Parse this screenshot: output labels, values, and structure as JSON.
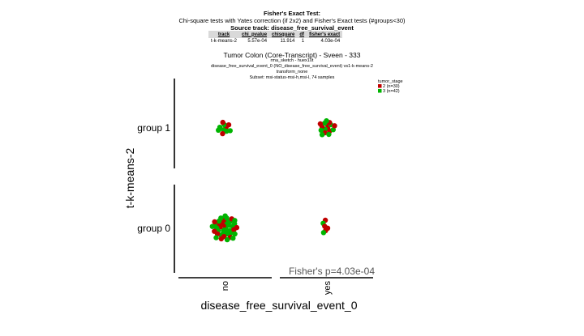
{
  "header": {
    "title": "Fisher's Exact Test:",
    "description": "Chi-square tests with Yates correction (if 2x2) and Fisher's Exact tests (#groups<30)",
    "source": "Source track: disease_free_survival_event",
    "table": {
      "columns": [
        "track",
        "chi_pvalue",
        "chisquare",
        "df",
        "fisher's exact"
      ],
      "rows": [
        [
          "t-k-means-2",
          "5.57e-04",
          "11.914",
          "1",
          "4.03e-04"
        ]
      ]
    }
  },
  "plot": {
    "title": "Tumor Colon (Core-Transcript) - Sveen - 333",
    "subtitle_lines": [
      "rma_sketch - huex10t",
      "disease_free_survival_event_0 (NO_disease_free_survival_event) vs1-k-means-2",
      "transform_none",
      "Subset: msi-status-msi-h,msi-l, 74 samples"
    ]
  },
  "chart_data": {
    "type": "scatter",
    "xlabel": "disease_free_survival_event_0",
    "ylabel": "t-k-means-2",
    "x_categories": [
      "no",
      "yes"
    ],
    "y_categories": [
      "group 0",
      "group 1"
    ],
    "annotation": "Fisher's p=4.03e-04",
    "legend": {
      "title": "tumor_stage",
      "placement": "top-right",
      "entries": [
        {
          "label": "2 (n=30)",
          "color": "#c00000"
        },
        {
          "label": "3 (n=42)",
          "color": "#00b400"
        }
      ]
    },
    "cells": [
      {
        "x": "no",
        "y": "group 1",
        "counts": {
          "2 (n=30)": 4,
          "3 (n=42)": 6
        }
      },
      {
        "x": "yes",
        "y": "group 1",
        "counts": {
          "2 (n=30)": 8,
          "3 (n=42)": 8
        }
      },
      {
        "x": "no",
        "y": "group 0",
        "counts": {
          "2 (n=30)": 14,
          "3 (n=42)": 26
        }
      },
      {
        "x": "yes",
        "y": "group 0",
        "counts": {
          "2 (n=30)": 4,
          "3 (n=42)": 2
        }
      }
    ]
  }
}
